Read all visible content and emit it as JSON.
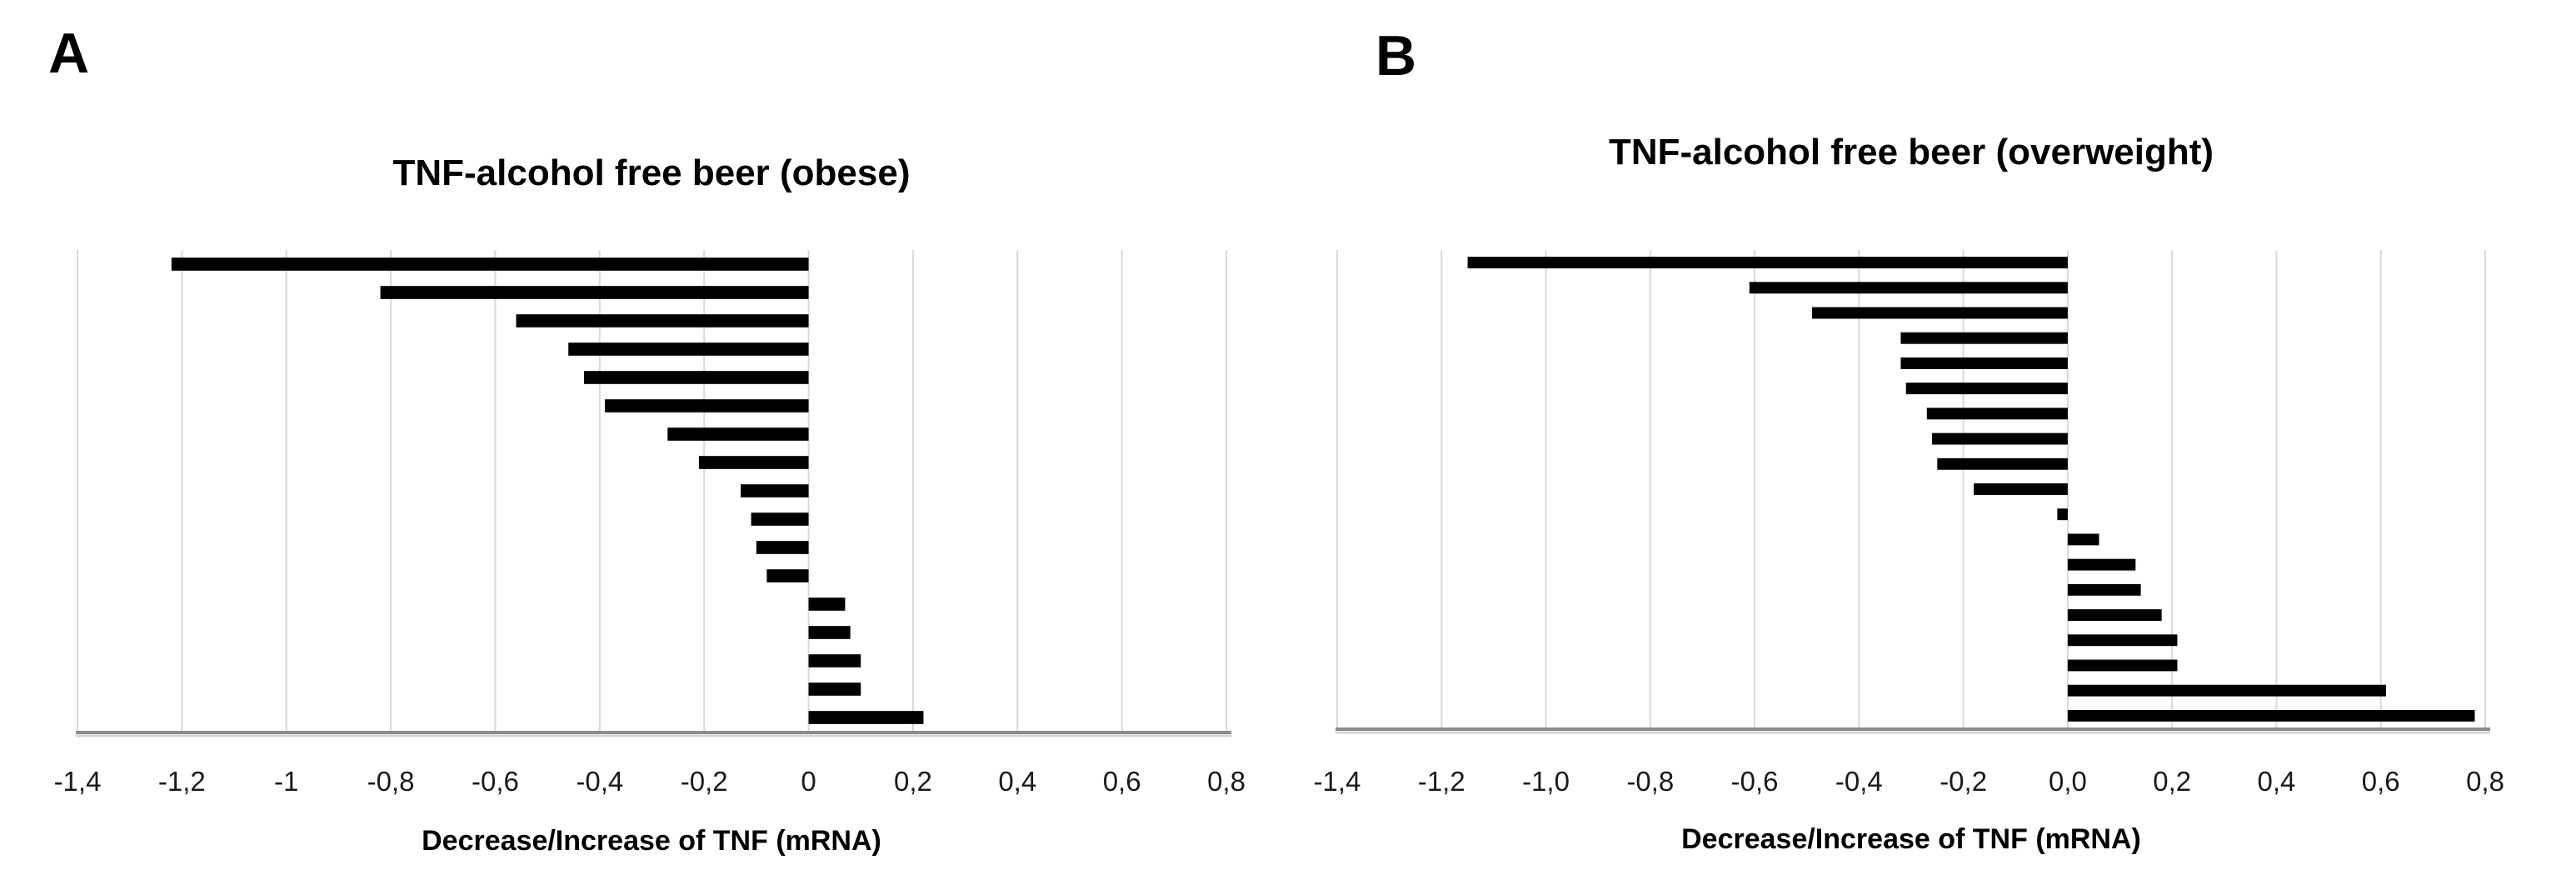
{
  "figure": {
    "background": "#ffffff",
    "bar_color": "#000000",
    "gridline_color": "#d9d9d9",
    "axis_line_color": "#8c8c8c"
  },
  "chart_data": [
    {
      "type": "bar",
      "orientation": "horizontal",
      "panel_label": "A",
      "title": "TNF-alcohol free beer (obese)",
      "xlabel": "Decrease/Increase of TNF (mRNA)",
      "xlim": [
        -1.4,
        0.8
      ],
      "xtick_step": 0.2,
      "xtick_labels": [
        "-1,4",
        "-1,2",
        "-1",
        "-0,8",
        "-0,6",
        "-0,4",
        "-0,2",
        "0",
        "0,2",
        "0,4",
        "0,6",
        "0,8"
      ],
      "grid": true,
      "legend": false,
      "values": [
        -1.22,
        -0.82,
        -0.56,
        -0.46,
        -0.43,
        -0.39,
        -0.27,
        -0.21,
        -0.13,
        -0.11,
        -0.1,
        -0.08,
        0.07,
        0.08,
        0.1,
        0.1,
        0.22
      ],
      "bar_color": "#000000"
    },
    {
      "type": "bar",
      "orientation": "horizontal",
      "panel_label": "B",
      "title": "TNF-alcohol free beer (overweight)",
      "xlabel": "Decrease/Increase of TNF (mRNA)",
      "xlim": [
        -1.4,
        0.8
      ],
      "xtick_step": 0.2,
      "xtick_labels": [
        "-1,4",
        "-1,2",
        "-1,0",
        "-0,8",
        "-0,6",
        "-0,4",
        "-0,2",
        "0,0",
        "0,2",
        "0,4",
        "0,6",
        "0,8"
      ],
      "grid": true,
      "legend": false,
      "values": [
        -1.15,
        -0.61,
        -0.49,
        -0.32,
        -0.32,
        -0.31,
        -0.27,
        -0.26,
        -0.25,
        -0.18,
        -0.02,
        0.06,
        0.13,
        0.14,
        0.18,
        0.21,
        0.21,
        0.61,
        0.78
      ],
      "bar_color": "#000000"
    }
  ]
}
